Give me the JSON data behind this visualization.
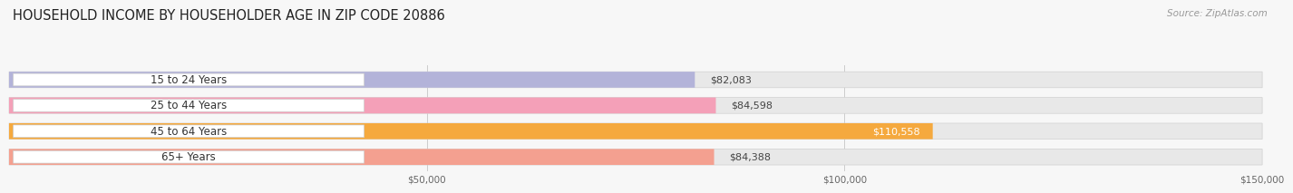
{
  "title": "HOUSEHOLD INCOME BY HOUSEHOLDER AGE IN ZIP CODE 20886",
  "source": "Source: ZipAtlas.com",
  "categories": [
    "15 to 24 Years",
    "25 to 44 Years",
    "45 to 64 Years",
    "65+ Years"
  ],
  "values": [
    82083,
    84598,
    110558,
    84388
  ],
  "bar_colors": [
    "#b3b3d9",
    "#f4a0b8",
    "#f5a93e",
    "#f4a090"
  ],
  "label_colors": [
    "#333333",
    "#333333",
    "#ffffff",
    "#333333"
  ],
  "value_labels": [
    "$82,083",
    "$84,598",
    "$110,558",
    "$84,388"
  ],
  "xlim": [
    0,
    150000
  ],
  "xticks": [
    50000,
    100000,
    150000
  ],
  "xtick_labels": [
    "$50,000",
    "$100,000",
    "$150,000"
  ],
  "background_color": "#f7f7f7",
  "title_fontsize": 10.5,
  "source_fontsize": 7.5,
  "bar_label_fontsize": 8.5,
  "value_label_fontsize": 8.0
}
